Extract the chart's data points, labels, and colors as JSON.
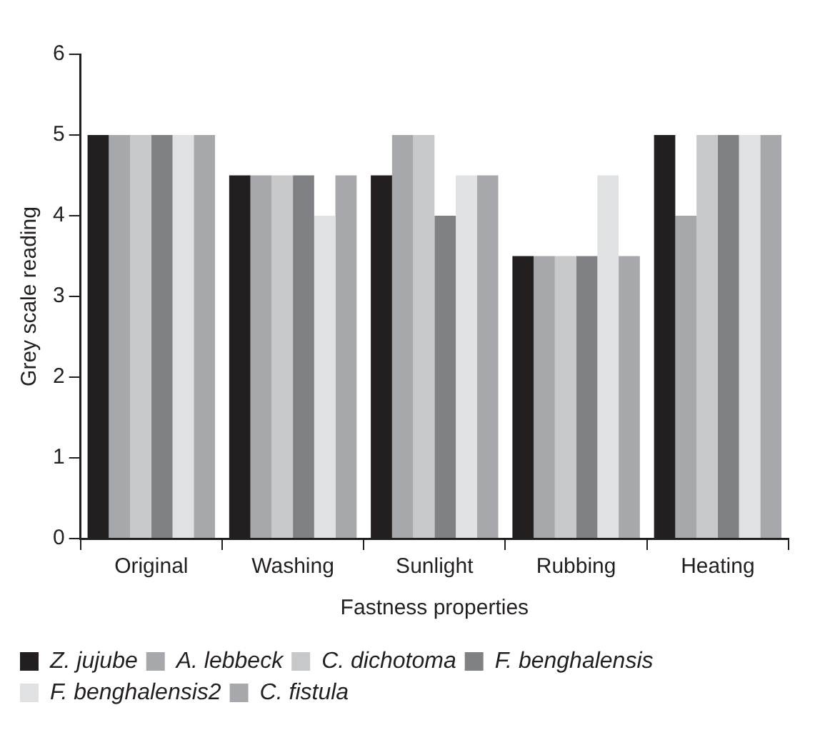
{
  "chart_data": {
    "type": "bar",
    "xlabel": "Fastness properties",
    "ylabel": "Grey scale reading",
    "categories": [
      "Original",
      "Washing",
      "Sunlight",
      "Rubbing",
      "Heating"
    ],
    "series": [
      {
        "name": "Z. jujube",
        "color": "#231f20",
        "values": [
          5,
          4.5,
          4.5,
          3.5,
          5
        ]
      },
      {
        "name": "A. lebbeck",
        "color": "#a7a8ab",
        "values": [
          5,
          4.5,
          5,
          3.5,
          4
        ]
      },
      {
        "name": "C. dichotoma",
        "color": "#c7c8ca",
        "values": [
          5,
          4.5,
          5,
          3.5,
          5
        ]
      },
      {
        "name": "F. benghalensis",
        "color": "#808184",
        "values": [
          5,
          4.5,
          4,
          3.5,
          5
        ]
      },
      {
        "name": "F. benghalensis2",
        "color": "#e0e1e3",
        "values": [
          5,
          4,
          4.5,
          4.5,
          5
        ]
      },
      {
        "name": "C. fistula",
        "color": "#a7a8ab",
        "values": [
          5,
          4.5,
          4.5,
          3.5,
          5
        ]
      }
    ],
    "ylim": [
      0,
      6
    ],
    "yticks": [
      0,
      1,
      2,
      3,
      4,
      5,
      6
    ],
    "grid": false,
    "legend": "bottom"
  }
}
